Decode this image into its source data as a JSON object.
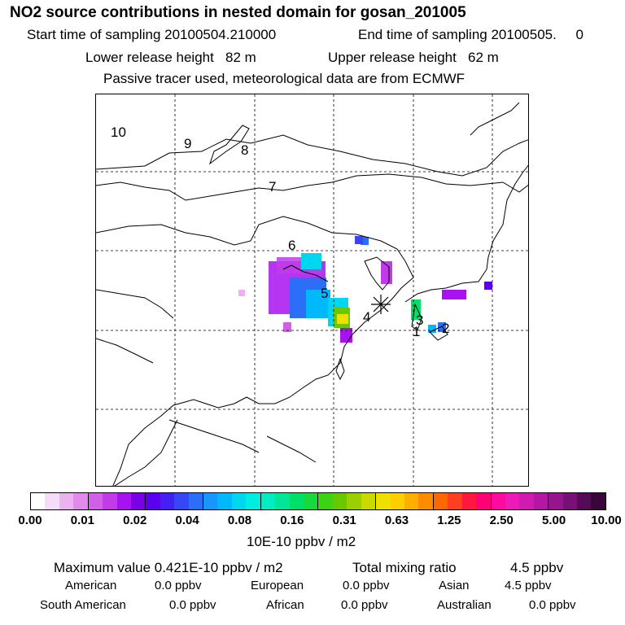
{
  "header": {
    "title": "NO2 source contributions in nested domain for gosan_201005",
    "start_label": "Start time of sampling 20100504.210000",
    "end_label": "End time of sampling 20100505.     0",
    "lower_label": "Lower release height   82 m",
    "upper_label": "Upper release height   62 m",
    "passive_label": "Passive tracer used, meteorological data are from ECMWF"
  },
  "map": {
    "region_numbers": [
      "10",
      "9",
      "8",
      "7",
      "6",
      "5",
      "4",
      "1",
      "2",
      "3"
    ],
    "receptor_marker": "star-marker",
    "colors": {
      "coast": "#000000",
      "grid": "#000000"
    }
  },
  "colorbar": {
    "ticks": [
      "0.00",
      "0.01",
      "0.02",
      "0.04",
      "0.08",
      "0.16",
      "0.31",
      "0.63",
      "1.25",
      "2.50",
      "5.00",
      "10.00"
    ],
    "unit": "10E-10 ppbv / m2",
    "colors": [
      "#ffffff",
      "#f5dcf7",
      "#eab3f0",
      "#e08ae9",
      "#d061e6",
      "#c23be9",
      "#a812f0",
      "#7a00e8",
      "#5a00ee",
      "#4520f2",
      "#3846f5",
      "#2d6ef7",
      "#1896fa",
      "#00b8fb",
      "#00d6f0",
      "#00eee0",
      "#00ecc2",
      "#00e896",
      "#00e068",
      "#18d83c",
      "#3ed216",
      "#6ac800",
      "#9ad000",
      "#c8da00",
      "#eee000",
      "#ffce00",
      "#ffaf00",
      "#ff8c00",
      "#ff6800",
      "#ff4020",
      "#ff1740",
      "#ff0077",
      "#ff0aa0",
      "#ee1ab8",
      "#d11ab0",
      "#b517a4",
      "#96158f",
      "#771178",
      "#560b58",
      "#3a063a"
    ]
  },
  "footer": {
    "max_label": "Maximum value  0.421E-10 ppbv / m2",
    "total_label": "Total mixing ratio",
    "total_value": "4.5 ppbv",
    "rows": [
      {
        "name": "American",
        "value": "0.0 ppbv"
      },
      {
        "name": "European",
        "value": "0.0 ppbv"
      },
      {
        "name": "Asian",
        "value": "4.5 ppbv"
      },
      {
        "name": "South American",
        "value": "0.0 ppbv"
      },
      {
        "name": "African",
        "value": "0.0 ppbv"
      },
      {
        "name": "Australian",
        "value": "0.0 ppbv"
      }
    ]
  }
}
